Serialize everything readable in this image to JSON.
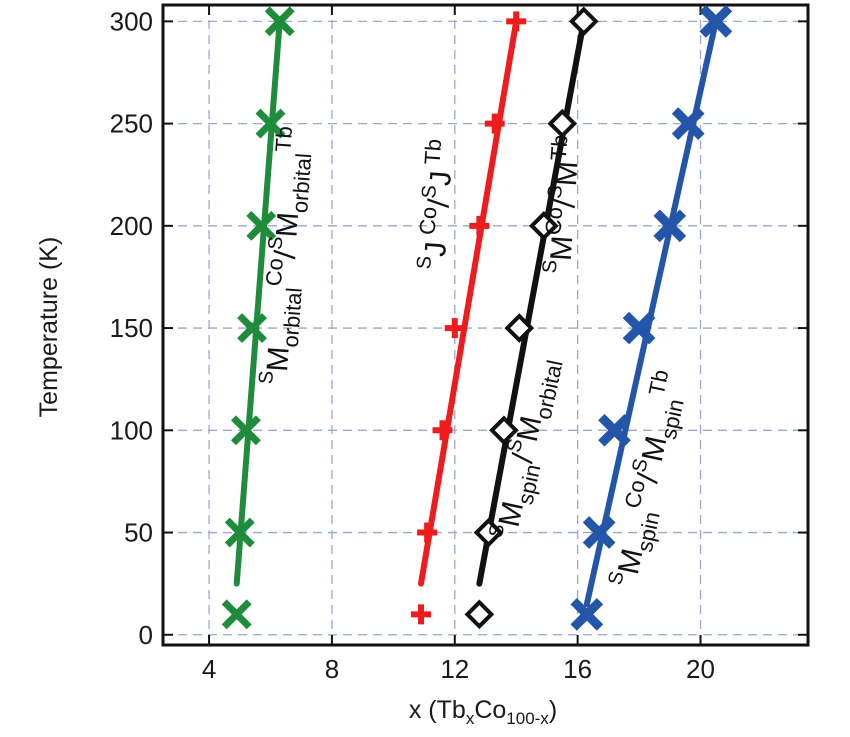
{
  "chart_data": {
    "type": "scatter",
    "ylabel": "Temperature (K)",
    "xlabel": {
      "prefix": "x (Tb",
      "sub1": "x",
      "mid": "Co",
      "sub2": "100-x",
      "suffix": ")"
    },
    "xlim": [
      2.5,
      23.5
    ],
    "ylim": [
      -5,
      308
    ],
    "xticks": [
      4,
      8,
      12,
      16,
      20
    ],
    "yticks": [
      0,
      50,
      100,
      150,
      200,
      250,
      300
    ],
    "grid": true,
    "series": [
      {
        "color": "#1e8c3a",
        "marker": "x",
        "points": [
          {
            "x": 4.9,
            "y": 10
          },
          {
            "x": 5.0,
            "y": 50
          },
          {
            "x": 5.2,
            "y": 100
          },
          {
            "x": 5.4,
            "y": 150
          },
          {
            "x": 5.7,
            "y": 200
          },
          {
            "x": 6.0,
            "y": 250
          },
          {
            "x": 6.3,
            "y": 300
          }
        ],
        "line": [
          {
            "x": 4.9,
            "y": 25
          },
          {
            "x": 6.3,
            "y": 300
          }
        ]
      },
      {
        "color": "#ee1c1c",
        "marker": "plus",
        "points": [
          {
            "x": 10.9,
            "y": 10
          },
          {
            "x": 11.1,
            "y": 50
          },
          {
            "x": 11.6,
            "y": 100
          },
          {
            "x": 12.0,
            "y": 150
          },
          {
            "x": 12.8,
            "y": 200
          },
          {
            "x": 13.3,
            "y": 250
          },
          {
            "x": 14.0,
            "y": 300
          }
        ],
        "line": [
          {
            "x": 10.9,
            "y": 25
          },
          {
            "x": 14.0,
            "y": 300
          }
        ]
      },
      {
        "color": "#111111",
        "marker": "diamond-open",
        "points": [
          {
            "x": 12.8,
            "y": 10
          },
          {
            "x": 13.1,
            "y": 50
          },
          {
            "x": 13.6,
            "y": 100
          },
          {
            "x": 14.1,
            "y": 150
          },
          {
            "x": 14.9,
            "y": 200
          },
          {
            "x": 15.5,
            "y": 250
          },
          {
            "x": 16.2,
            "y": 300
          }
        ],
        "line": [
          {
            "x": 12.8,
            "y": 25
          },
          {
            "x": 16.2,
            "y": 300
          }
        ]
      },
      {
        "color": "#2356a8",
        "marker": "x-bold",
        "points": [
          {
            "x": 16.3,
            "y": 10
          },
          {
            "x": 16.7,
            "y": 50
          },
          {
            "x": 17.2,
            "y": 100
          },
          {
            "x": 18.0,
            "y": 150
          },
          {
            "x": 19.0,
            "y": 200
          },
          {
            "x": 19.6,
            "y": 250
          },
          {
            "x": 20.5,
            "y": 300
          }
        ],
        "line": [
          {
            "x": 16.3,
            "y": 15
          },
          {
            "x": 20.5,
            "y": 300
          }
        ]
      }
    ],
    "annotations": [
      {
        "pos": {
          "x": 6.8,
          "y": 185
        },
        "rotation": -86,
        "parts": [
          {
            "t": "S",
            "k": "pre"
          },
          {
            "t": "M",
            "k": "n"
          },
          {
            "t": "orbital",
            "k": "sub"
          },
          {
            "t": "Co",
            "k": "sup"
          },
          {
            "t": "/",
            "k": "n"
          },
          {
            "t": "S",
            "k": "pre"
          },
          {
            "t": "M",
            "k": "n"
          },
          {
            "t": "orbital",
            "k": "sub"
          },
          {
            "t": "Tb",
            "k": "sup"
          }
        ]
      },
      {
        "pos": {
          "x": 11.8,
          "y": 210
        },
        "rotation": -86,
        "parts": [
          {
            "t": "S",
            "k": "pre"
          },
          {
            "t": "J",
            "k": "n"
          },
          {
            "t": " Co",
            "k": "sup"
          },
          {
            "t": "/",
            "k": "n"
          },
          {
            "t": "S",
            "k": "pre"
          },
          {
            "t": "J",
            "k": "n"
          },
          {
            "t": " Tb",
            "k": "sup"
          }
        ]
      },
      {
        "pos": {
          "x": 14.6,
          "y": 90
        },
        "rotation": -78,
        "parts": [
          {
            "t": "S",
            "k": "pre"
          },
          {
            "t": "M",
            "k": "n"
          },
          {
            "t": "spin",
            "k": "sub"
          },
          {
            "t": "/",
            "k": "n"
          },
          {
            "t": "S",
            "k": "pre"
          },
          {
            "t": "M",
            "k": "n"
          },
          {
            "t": "orbital",
            "k": "sub"
          }
        ]
      },
      {
        "pos": {
          "x": 15.9,
          "y": 210
        },
        "rotation": -86,
        "parts": [
          {
            "t": "S",
            "k": "pre"
          },
          {
            "t": "M",
            "k": "n"
          },
          {
            "t": "Co",
            "k": "sup"
          },
          {
            "t": "/",
            "k": "n"
          },
          {
            "t": "S",
            "k": "pre"
          },
          {
            "t": "M",
            "k": "n"
          },
          {
            "t": "Tb",
            "k": "sup"
          }
        ]
      },
      {
        "pos": {
          "x": 18.6,
          "y": 75
        },
        "rotation": -78,
        "parts": [
          {
            "t": "S",
            "k": "pre"
          },
          {
            "t": "M",
            "k": "n"
          },
          {
            "t": "spin",
            "k": "sub"
          },
          {
            "t": "Co",
            "k": "sup"
          },
          {
            "t": "/",
            "k": "n"
          },
          {
            "t": "S",
            "k": "pre"
          },
          {
            "t": "M",
            "k": "n"
          },
          {
            "t": "spin",
            "k": "sub"
          },
          {
            "t": "Tb",
            "k": "sup"
          }
        ]
      }
    ]
  }
}
